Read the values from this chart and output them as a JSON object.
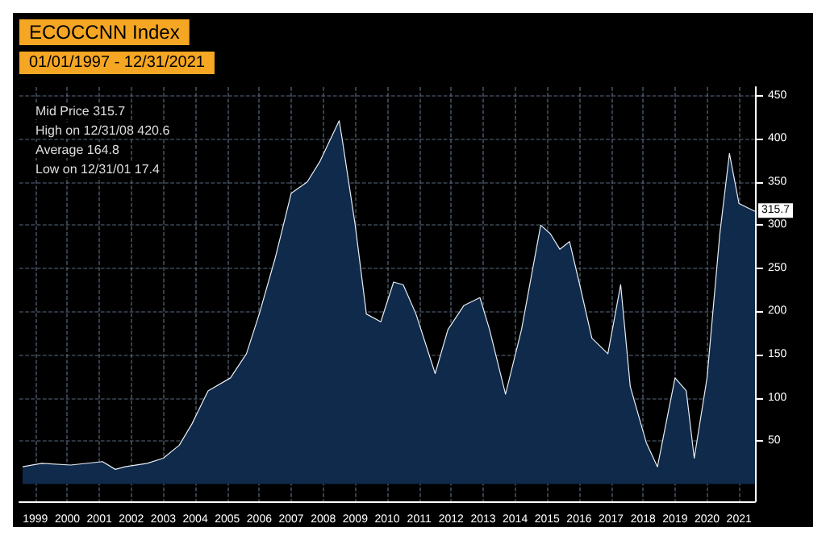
{
  "chart_data": {
    "type": "area",
    "title": "ECOCCNN Index",
    "subtitle": "01/01/1997 - 12/31/2021",
    "annotations": [
      "Mid Price 315.7",
      "High on 12/31/08 420.6",
      "Average 164.8",
      "Low on 12/31/01 17.4",
      {
        "text": "315.7",
        "x": 2022,
        "y": 316
      }
    ],
    "x": [
      1999.1,
      1999.7,
      2000.6,
      2001.6,
      2002.0,
      2002.3,
      2003.0,
      2003.5,
      2004.0,
      2004.4,
      2004.9,
      2005.6,
      2006.1,
      2006.5,
      2007.0,
      2007.5,
      2008.0,
      2008.4,
      2009.0,
      2009.1,
      2009.5,
      2009.85,
      2010.3,
      2010.7,
      2011.0,
      2011.4,
      2012.0,
      2012.4,
      2012.9,
      2013.4,
      2013.7,
      2014.2,
      2014.7,
      2015.3,
      2015.6,
      2015.9,
      2016.2,
      2016.5,
      2016.9,
      2017.4,
      2017.8,
      2018.1,
      2018.6,
      2018.95,
      2019.2,
      2019.5,
      2019.85,
      2020.1,
      2020.5,
      2020.9,
      2021.2,
      2021.5,
      2022.0
    ],
    "series": [
      {
        "color": "#0f2a4a",
        "values": [
          20,
          24,
          22,
          26,
          17,
          20,
          24,
          30,
          45,
          70,
          108,
          123,
          151,
          197,
          262,
          337,
          350,
          374,
          421,
          398,
          300,
          197,
          188,
          234,
          231,
          197,
          128,
          179,
          207,
          216,
          179,
          104,
          179,
          300,
          290,
          272,
          281,
          234,
          169,
          151,
          231,
          113,
          48,
          20,
          67,
          123,
          108,
          30,
          123,
          290,
          383,
          325,
          316
        ]
      }
    ],
    "xlim": [
      1999,
      2022
    ],
    "xticks": [
      {
        "value": 1999.5,
        "label": "1999"
      },
      {
        "value": 2000.5,
        "label": "2000"
      },
      {
        "value": 2001.5,
        "label": "2001"
      },
      {
        "value": 2002.5,
        "label": "2002"
      },
      {
        "value": 2003.5,
        "label": "2003"
      },
      {
        "value": 2004.5,
        "label": "2004"
      },
      {
        "value": 2005.5,
        "label": "2005"
      },
      {
        "value": 2006.5,
        "label": "2006"
      },
      {
        "value": 2007.5,
        "label": "2007"
      },
      {
        "value": 2008.5,
        "label": "2008"
      },
      {
        "value": 2009.5,
        "label": "2009"
      },
      {
        "value": 2010.5,
        "label": "2010"
      },
      {
        "value": 2011.5,
        "label": "2011"
      },
      {
        "value": 2012.5,
        "label": "2012"
      },
      {
        "value": 2013.5,
        "label": "2013"
      },
      {
        "value": 2014.5,
        "label": "2014"
      },
      {
        "value": 2015.5,
        "label": "2015"
      },
      {
        "value": 2016.5,
        "label": "2016"
      },
      {
        "value": 2017.5,
        "label": "2017"
      },
      {
        "value": 2018.5,
        "label": "2018"
      },
      {
        "value": 2019.5,
        "label": "2019"
      },
      {
        "value": 2020.5,
        "label": "2020"
      },
      {
        "value": 2021.5,
        "label": "2021"
      }
    ],
    "ylim": [
      -20,
      460
    ],
    "yticks": [
      50,
      100,
      150,
      200,
      250,
      300,
      350,
      400,
      450
    ],
    "grid": true
  }
}
